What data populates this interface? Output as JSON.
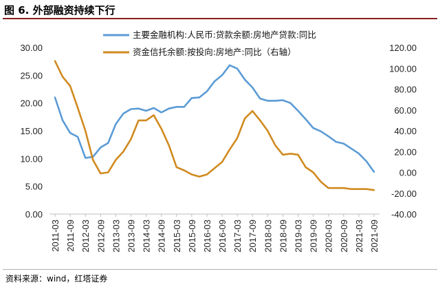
{
  "figure": {
    "title": "图 6. 外部融资持续下行",
    "source": "资料来源：wind，红塔证券"
  },
  "colors": {
    "series1": "#5b9bd5",
    "series2": "#d08a1f"
  },
  "chart_data": {
    "type": "line",
    "x": [
      "2011-03",
      "2011-06",
      "2011-09",
      "2011-12",
      "2012-03",
      "2012-06",
      "2012-09",
      "2012-12",
      "2013-03",
      "2013-06",
      "2013-09",
      "2013-12",
      "2014-03",
      "2014-06",
      "2014-09",
      "2014-12",
      "2015-03",
      "2015-06",
      "2015-09",
      "2015-12",
      "2016-03",
      "2016-06",
      "2016-09",
      "2016-12",
      "2017-03",
      "2017-06",
      "2017-09",
      "2017-12",
      "2018-03",
      "2018-06",
      "2018-09",
      "2018-12",
      "2019-03",
      "2019-06",
      "2019-09",
      "2019-12",
      "2020-03",
      "2020-06",
      "2020-09",
      "2020-12",
      "2021-03",
      "2021-06",
      "2021-09"
    ],
    "x_ticks": [
      "2011-03",
      "2011-09",
      "2012-03",
      "2012-09",
      "2013-03",
      "2013-09",
      "2014-03",
      "2014-09",
      "2015-03",
      "2015-09",
      "2016-03",
      "2016-09",
      "2017-03",
      "2017-09",
      "2018-03",
      "2018-09",
      "2019-03",
      "2019-09",
      "2020-03",
      "2020-09",
      "2021-03",
      "2021-09"
    ],
    "y_left": {
      "ylim": [
        0,
        30
      ],
      "ticks": [
        "0.00",
        "5.00",
        "10.00",
        "15.00",
        "20.00",
        "25.00",
        "30.00"
      ]
    },
    "y_right": {
      "ylim": [
        -40,
        120
      ],
      "ticks": [
        "-40.00",
        "-20.00",
        "0.00",
        "20.00",
        "40.00",
        "60.00",
        "80.00",
        "100.00",
        "120.00"
      ]
    },
    "series": [
      {
        "name": "主要金融机构:人民币:贷款余额:房地产贷款:同比",
        "axis": "left",
        "color": "#5b9bd5",
        "values": [
          21.0,
          16.9,
          14.6,
          13.9,
          10.1,
          10.3,
          12.0,
          12.8,
          16.2,
          18.1,
          18.9,
          19.0,
          18.6,
          19.1,
          18.3,
          19.0,
          19.3,
          19.3,
          20.9,
          21.0,
          22.1,
          23.9,
          25.0,
          26.8,
          26.2,
          24.2,
          22.8,
          20.8,
          20.4,
          20.4,
          20.5,
          20.0,
          18.6,
          17.1,
          15.5,
          14.9,
          14.0,
          13.0,
          12.7,
          11.8,
          10.9,
          9.5,
          7.6
        ]
      },
      {
        "name": "资金信托余额:按投向:房地产:同比（右轴）",
        "axis": "right",
        "color": "#d08a1f",
        "values": [
          107,
          92,
          83,
          62,
          40,
          12,
          -1,
          0,
          12,
          20,
          32,
          50,
          50,
          55,
          42,
          26,
          5,
          2,
          -2,
          -4,
          -2,
          4,
          10,
          22,
          33,
          52,
          59,
          50,
          40,
          26,
          17,
          18,
          17,
          5,
          0,
          -9,
          -15,
          -15,
          -15,
          -16,
          -16,
          -16,
          -17
        ]
      }
    ],
    "legend": "top"
  }
}
